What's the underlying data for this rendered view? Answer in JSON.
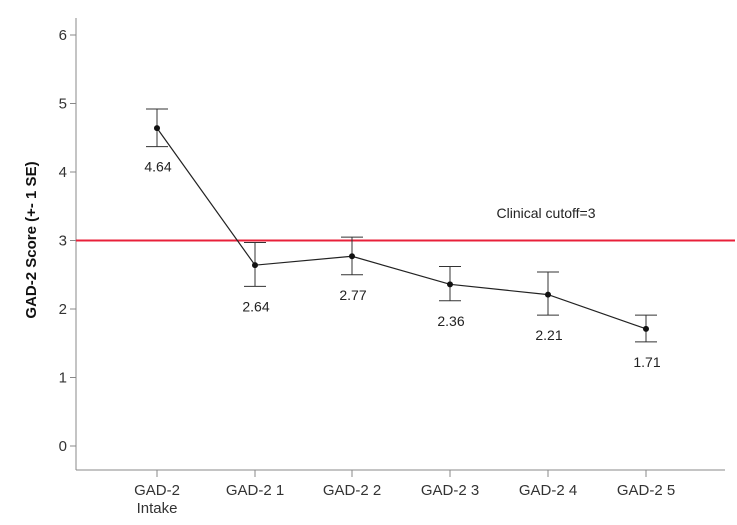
{
  "chart_data": {
    "type": "line",
    "title": "",
    "xlabel": "",
    "ylabel": "GAD-2 Score (+- 1 SE)",
    "ylim": [
      -0.35,
      6.4
    ],
    "yticks": [
      "0",
      "1",
      "2",
      "3",
      "4",
      "5",
      "6"
    ],
    "categories": [
      [
        "GAD-2",
        "Intake"
      ],
      [
        "GAD-2 1"
      ],
      [
        "GAD-2 2"
      ],
      [
        "GAD-2 3"
      ],
      [
        "GAD-2 4"
      ],
      [
        "GAD-2 5"
      ]
    ],
    "series": [
      {
        "name": "GAD-2 Score",
        "values": [
          4.64,
          2.64,
          2.77,
          2.36,
          2.21,
          1.71
        ],
        "labels": [
          "4.64",
          "2.64",
          "2.77",
          "2.36",
          "2.21",
          "1.71"
        ],
        "se_upper": [
          4.92,
          2.97,
          3.05,
          2.62,
          2.54,
          1.91
        ],
        "se_lower": [
          4.37,
          2.33,
          2.5,
          2.12,
          1.91,
          1.52
        ],
        "color": "#222222"
      }
    ],
    "reference_line": {
      "value": 3,
      "label": "Clinical cutoff=3",
      "color": "#e8203a"
    },
    "grid": false
  }
}
